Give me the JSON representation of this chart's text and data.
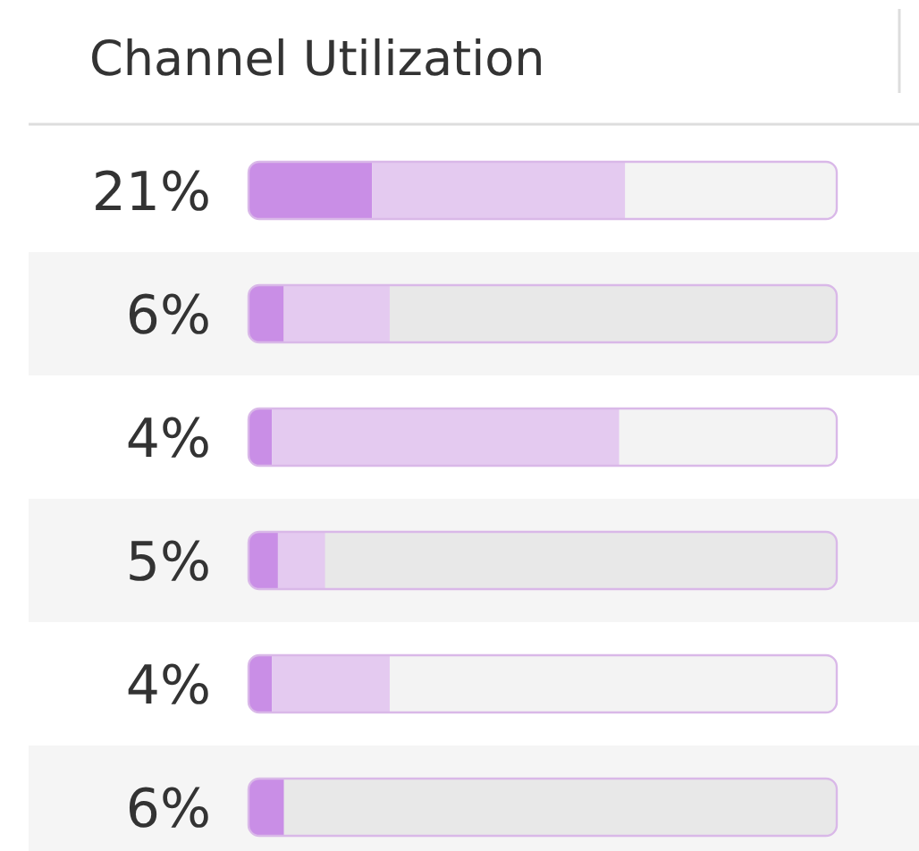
{
  "chart_data": {
    "type": "bar",
    "orientation": "horizontal",
    "stacked": true,
    "title": "Channel Utilization",
    "categories": [
      null,
      null,
      null,
      null,
      null,
      null
    ],
    "xlim": [
      0,
      100
    ],
    "series": [
      {
        "color": "#c98ee6",
        "values": [
          21,
          6,
          4,
          5,
          4,
          6
        ],
        "value_labels": [
          "21%",
          "6%",
          "4%",
          "5%",
          "4%",
          "6%"
        ]
      },
      {
        "color": "#e4caf0",
        "values": [
          43,
          18,
          59,
          8,
          20,
          0
        ]
      }
    ]
  }
}
